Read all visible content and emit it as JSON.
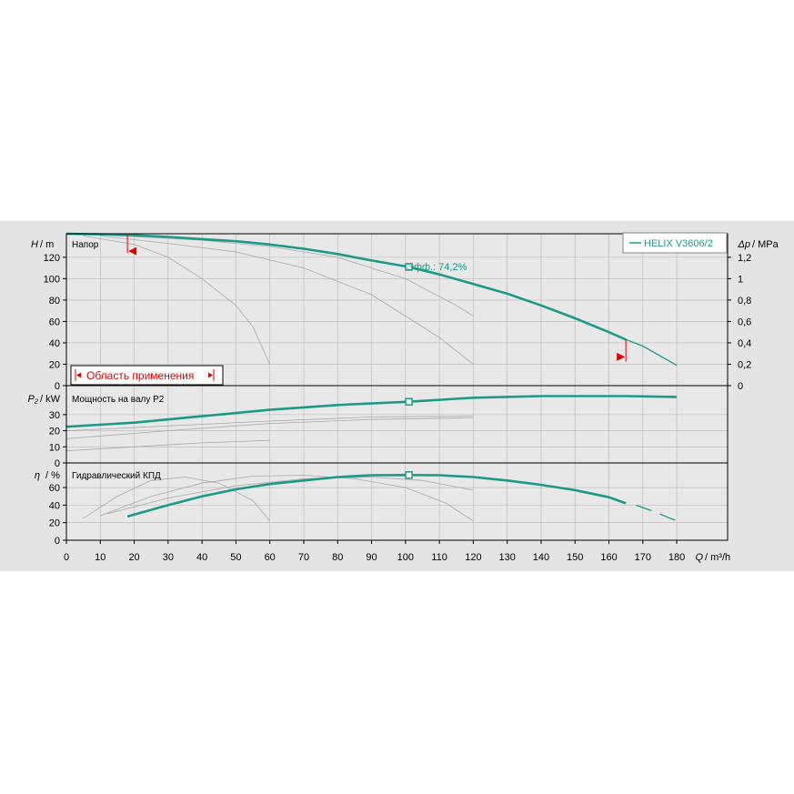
{
  "chart_data": {
    "type": "line",
    "colors": {
      "main": "#1c9a86",
      "ref": "#a9a9a9",
      "grid": "#b8b8b8",
      "panel": "#e4e4e4",
      "plot": "#e8e8e8",
      "marker": "#e00000"
    },
    "x_axis": {
      "label_var": "Q",
      "label_unit": "/ m³/h",
      "range": [
        0,
        195
      ],
      "ticks": [
        0,
        10,
        20,
        30,
        40,
        50,
        60,
        70,
        80,
        90,
        100,
        110,
        120,
        130,
        140,
        150,
        160,
        170,
        180
      ]
    },
    "legend": {
      "label": "HELIX V3606/2",
      "placement": "top-right"
    },
    "head": {
      "title": "Напор",
      "y_var": "H",
      "y_unit": "/ m",
      "ylim": [
        0,
        142
      ],
      "ticks": [
        0,
        20,
        40,
        60,
        80,
        100,
        120
      ],
      "right_label_var": "Δp",
      "right_label_unit": "/ MPa",
      "right_ticks": [
        "0",
        "0,2",
        "0,4",
        "0,6",
        "0,8",
        "1",
        "1,2"
      ],
      "duty_label": "Эфф.: 74,2%",
      "duty_point": [
        101,
        111
      ],
      "range_label": "Область применения",
      "range_limits": [
        18,
        165
      ],
      "main": [
        [
          0,
          142
        ],
        [
          18,
          141
        ],
        [
          30,
          139
        ],
        [
          40,
          137
        ],
        [
          50,
          135
        ],
        [
          60,
          132
        ],
        [
          70,
          128
        ],
        [
          80,
          123
        ],
        [
          90,
          117
        ],
        [
          101,
          111
        ],
        [
          110,
          104
        ],
        [
          120,
          95
        ],
        [
          130,
          86
        ],
        [
          140,
          75
        ],
        [
          150,
          63
        ],
        [
          160,
          50
        ],
        [
          165,
          43
        ]
      ],
      "main_ext": [
        [
          165,
          43
        ],
        [
          170,
          37
        ],
        [
          180,
          19
        ]
      ],
      "refs": [
        [
          [
            5,
            140
          ],
          [
            20,
            132
          ],
          [
            30,
            120
          ],
          [
            40,
            100
          ],
          [
            50,
            75
          ],
          [
            55,
            55
          ],
          [
            60,
            20
          ]
        ],
        [
          [
            10,
            140
          ],
          [
            30,
            133
          ],
          [
            50,
            125
          ],
          [
            70,
            110
          ],
          [
            90,
            85
          ],
          [
            110,
            45
          ],
          [
            120,
            20
          ]
        ],
        [
          [
            10,
            141
          ],
          [
            40,
            136
          ],
          [
            60,
            130
          ],
          [
            80,
            120
          ],
          [
            100,
            100
          ],
          [
            115,
            75
          ],
          [
            120,
            65
          ]
        ]
      ]
    },
    "power": {
      "title": "Мощность на валу P2",
      "y_var": "P₂",
      "y_unit": "/ kW",
      "ylim": [
        0,
        48
      ],
      "ticks": [
        0,
        10,
        20,
        30
      ],
      "duty_point": [
        101,
        38
      ],
      "main": [
        [
          0,
          22.5
        ],
        [
          20,
          25
        ],
        [
          40,
          29
        ],
        [
          60,
          33
        ],
        [
          80,
          36
        ],
        [
          101,
          38
        ],
        [
          120,
          40.5
        ],
        [
          140,
          41.5
        ],
        [
          160,
          41.5
        ],
        [
          165,
          41.5
        ],
        [
          180,
          41
        ]
      ],
      "refs": [
        [
          [
            0,
            7.5
          ],
          [
            20,
            10
          ],
          [
            40,
            12.5
          ],
          [
            60,
            14
          ]
        ],
        [
          [
            0,
            15
          ],
          [
            30,
            20
          ],
          [
            60,
            24.5
          ],
          [
            90,
            27
          ],
          [
            120,
            28
          ]
        ],
        [
          [
            0,
            20
          ],
          [
            30,
            23
          ],
          [
            60,
            26
          ],
          [
            90,
            28.5
          ],
          [
            120,
            29
          ]
        ]
      ]
    },
    "efficiency": {
      "title": "Гидравлический КПД",
      "y_var": "η",
      "y_unit": "/ %",
      "ylim": [
        0,
        88
      ],
      "ticks": [
        0,
        20,
        40,
        60
      ],
      "duty_point": [
        101,
        74.2
      ],
      "main": [
        [
          18,
          27
        ],
        [
          30,
          40
        ],
        [
          40,
          50
        ],
        [
          50,
          58
        ],
        [
          60,
          64
        ],
        [
          70,
          68
        ],
        [
          80,
          72
        ],
        [
          90,
          74
        ],
        [
          101,
          74.2
        ],
        [
          110,
          74
        ],
        [
          120,
          72
        ],
        [
          130,
          68
        ],
        [
          140,
          63
        ],
        [
          150,
          57
        ],
        [
          160,
          49
        ],
        [
          165,
          42
        ]
      ],
      "main_ext": [
        [
          168,
          40
        ],
        [
          173,
          33
        ],
        [
          180,
          22
        ]
      ],
      "refs": [
        [
          [
            5,
            25
          ],
          [
            15,
            50
          ],
          [
            25,
            68
          ],
          [
            35,
            72
          ],
          [
            45,
            65
          ],
          [
            55,
            45
          ],
          [
            60,
            22
          ]
        ],
        [
          [
            10,
            28
          ],
          [
            25,
            50
          ],
          [
            40,
            65
          ],
          [
            55,
            73
          ],
          [
            70,
            74
          ],
          [
            85,
            70
          ],
          [
            100,
            60
          ],
          [
            112,
            42
          ],
          [
            120,
            22
          ]
        ],
        [
          [
            12,
            30
          ],
          [
            30,
            48
          ],
          [
            50,
            62
          ],
          [
            70,
            70
          ],
          [
            90,
            72
          ],
          [
            105,
            68
          ],
          [
            120,
            57
          ]
        ]
      ]
    }
  }
}
